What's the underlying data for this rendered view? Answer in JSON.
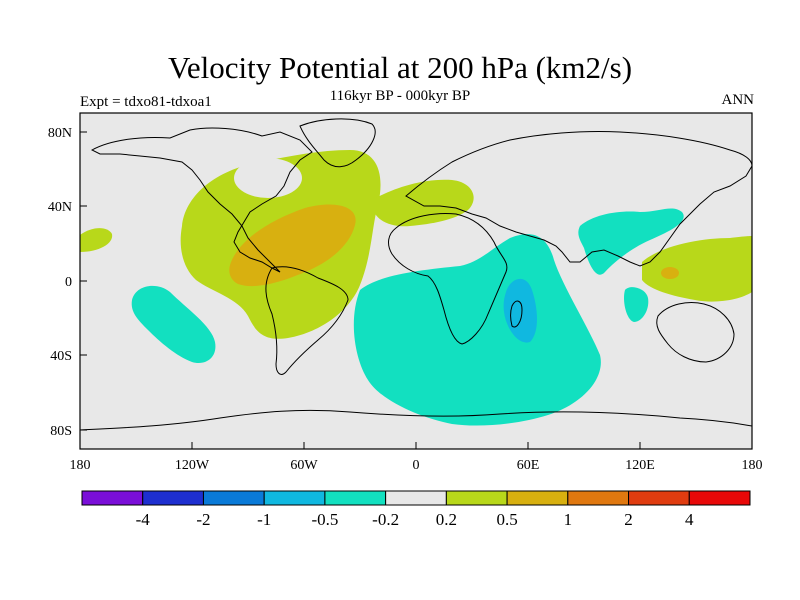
{
  "title": "Velocity Potential at 200 hPa (km2/s)",
  "subtitle": "116kyr BP - 000kyr BP",
  "left_label": "Expt = tdxo81-tdxoa1",
  "right_label": "ANN",
  "lat_ticks": [
    "80N",
    "40N",
    "0",
    "40S",
    "80S"
  ],
  "lon_ticks": [
    "180",
    "120W",
    "60W",
    "0",
    "60E",
    "120E",
    "180"
  ],
  "colorbar": {
    "labels": [
      "-4",
      "-2",
      "-1",
      "-0.5",
      "-0.2",
      "0.2",
      "0.5",
      "1",
      "2",
      "4"
    ],
    "colors": [
      "#7a0fd8",
      "#1e2fd0",
      "#0a7ad8",
      "#10b8e0",
      "#12e0c0",
      "#e8e8e8",
      "#b8d81a",
      "#d8b010",
      "#e07810",
      "#e03c10",
      "#e80808"
    ]
  },
  "colors": {
    "neutral": "#e8e8e8",
    "light_positive": "#b8d81a",
    "positive": "#d8b010",
    "light_negative": "#12e0c0",
    "negative": "#10b8e0"
  }
}
